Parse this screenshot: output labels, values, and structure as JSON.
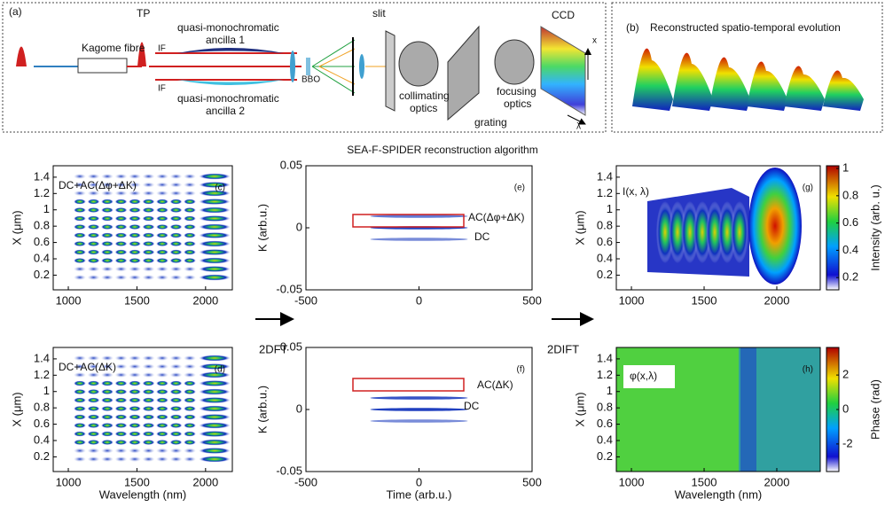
{
  "panel_a": {
    "label": "(a)",
    "tp": "TP",
    "fibre": "Kagome fibre",
    "ancilla1": [
      "quasi-monochromatic",
      "ancilla 1"
    ],
    "if1": "IF",
    "if2": "IF",
    "ancilla2": [
      "quasi-monochromatic",
      "ancilla 2"
    ],
    "bbo": "BBO",
    "slit": "slit",
    "collimating": [
      "collimating",
      "optics"
    ],
    "grating": "grating",
    "focusing": [
      "focusing",
      "optics"
    ],
    "ccd": "CCD",
    "x": "x",
    "lambda": "λ"
  },
  "panel_b": {
    "label": "(b)",
    "title": "Reconstructed spatio-temporal evolution"
  },
  "algorithm_title": "SEA-F-SPIDER  reconstruction algorithm",
  "arrows": [
    "2DFT",
    "2DIFT"
  ],
  "plots": [
    {
      "label": "(c)",
      "annotations": [
        "DC+AC(Δφ+ΔK)"
      ],
      "ylabel": "X (μm)",
      "xticks": [
        1000,
        1500,
        2000
      ],
      "yticks": [
        0.2,
        0.4,
        0.6,
        0.8,
        1,
        1.2,
        1.4
      ],
      "xlim": [
        890,
        2195
      ],
      "ylim": [
        0.02,
        1.54
      ]
    },
    {
      "label": "(d)",
      "annotations": [
        "DC+AC(ΔK)"
      ],
      "ylabel": "X (μm)",
      "xlabel": "Wavelength (nm)",
      "xticks": [
        1000,
        1500,
        2000
      ],
      "yticks": [
        0.2,
        0.4,
        0.6,
        0.8,
        1,
        1.2,
        1.4
      ],
      "xlim": [
        890,
        2195
      ],
      "ylim": [
        0.02,
        1.54
      ]
    },
    {
      "label": "(e)",
      "annotations": [
        "AC(Δφ+ΔK)",
        "DC"
      ],
      "ylabel": "K (arb.u.)",
      "xticks": [
        -500,
        0,
        500
      ],
      "yticks": [
        -0.05,
        0,
        0.05
      ],
      "xlim": [
        -500,
        500
      ],
      "ylim": [
        -0.05,
        0.05
      ]
    },
    {
      "label": "(f)",
      "annotations": [
        "AC(ΔK)",
        "DC"
      ],
      "ylabel": "K (arb.u.)",
      "xlabel": "Time (arb.u.)",
      "xticks": [
        -500,
        0,
        500
      ],
      "yticks": [
        -0.05,
        0,
        0.05
      ],
      "xlim": [
        -500,
        500
      ],
      "ylim": [
        -0.05,
        0.05
      ]
    },
    {
      "label": "(g)",
      "annotations": [
        "I(x, λ)"
      ],
      "ylabel": "X (μm)",
      "xticks": [
        1000,
        1500,
        2000
      ],
      "yticks": [
        0.2,
        0.4,
        0.6,
        0.8,
        1,
        1.2,
        1.4
      ],
      "xlim": [
        896,
        2299
      ],
      "ylim": [
        0.02,
        1.54
      ],
      "colorbar": {
        "label": "Intensity (arb. u.)",
        "ticks": [
          0.2,
          0.4,
          0.6,
          0.8,
          1
        ],
        "lim": [
          0.11,
          1.02
        ]
      }
    },
    {
      "label": "(h)",
      "annotations": [
        "φ(x,λ)"
      ],
      "ylabel": "X (μm)",
      "xlabel": "Wavelength (nm)",
      "xticks": [
        1000,
        1500,
        2000
      ],
      "yticks": [
        0.2,
        0.4,
        0.6,
        0.8,
        1,
        1.2,
        1.4
      ],
      "xlim": [
        896,
        2299
      ],
      "ylim": [
        0.02,
        1.54
      ],
      "colorbar": {
        "label": "Phase (rad)",
        "ticks": [
          -2,
          0,
          2
        ],
        "lim": [
          -3.6,
          3.6
        ]
      }
    }
  ]
}
